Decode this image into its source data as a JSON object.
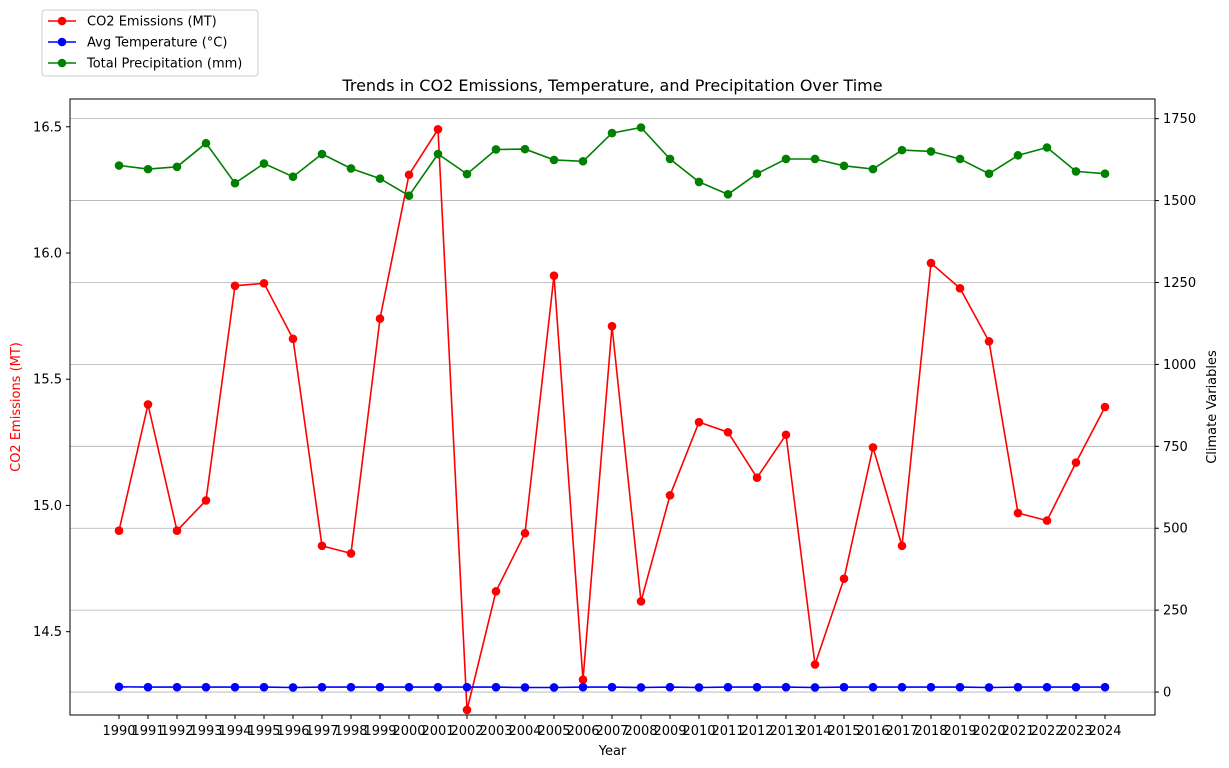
{
  "chart_data": {
    "type": "line",
    "title": "Trends in CO2 Emissions, Temperature, and Precipitation Over Time",
    "xlabel": "Year",
    "ylabel_left": "CO2 Emissions (MT)",
    "ylabel_right": "Climate Variables",
    "x": [
      1990,
      1991,
      1992,
      1993,
      1994,
      1995,
      1996,
      1997,
      1998,
      1999,
      2000,
      2001,
      2002,
      2003,
      2004,
      2005,
      2006,
      2007,
      2008,
      2009,
      2010,
      2011,
      2012,
      2013,
      2014,
      2015,
      2016,
      2017,
      2018,
      2019,
      2020,
      2021,
      2022,
      2023,
      2024
    ],
    "ylim_left": [
      14.17,
      16.61
    ],
    "ylim_right": [
      -70,
      1810
    ],
    "yticks_left": [
      14.5,
      15.0,
      15.5,
      16.0,
      16.5
    ],
    "ytick_labels_left": [
      "14.5",
      "15.0",
      "15.5",
      "16.0",
      "16.5"
    ],
    "yticks_right": [
      0,
      250,
      500,
      750,
      1000,
      1250,
      1500,
      1750
    ],
    "ytick_labels_right": [
      "0",
      "250",
      "500",
      "750",
      "1000",
      "1250",
      "1500",
      "1750"
    ],
    "grid": "horizontal-right-axis",
    "legend_placement": "top-left-outside",
    "series": [
      {
        "name": "CO2 Emissions (MT)",
        "axis": "left",
        "color": "#ff0000",
        "values": [
          14.9,
          15.4,
          14.9,
          15.02,
          15.87,
          15.88,
          15.66,
          14.84,
          14.81,
          15.74,
          16.31,
          16.49,
          14.19,
          14.66,
          14.89,
          15.91,
          14.31,
          15.71,
          14.62,
          15.04,
          15.33,
          15.29,
          15.11,
          15.28,
          14.37,
          14.71,
          15.23,
          14.84,
          15.96,
          15.86,
          15.65,
          14.97,
          14.94,
          15.17,
          15.39
        ]
      },
      {
        "name": "Avg Temperature (°C)",
        "axis": "right",
        "color": "#0000ff",
        "values": [
          16,
          15,
          15,
          15,
          15,
          15,
          14,
          15,
          15,
          15,
          15,
          15,
          15,
          15,
          14,
          14,
          15,
          15,
          14,
          15,
          14,
          15,
          15,
          15,
          14,
          15,
          15,
          15,
          15,
          15,
          14,
          15,
          15,
          15,
          15
        ]
      },
      {
        "name": "Total Precipitation (mm)",
        "axis": "right",
        "color": "#008000",
        "values": [
          1607,
          1596,
          1603,
          1675,
          1553,
          1613,
          1573,
          1642,
          1598,
          1567,
          1515,
          1642,
          1581,
          1656,
          1657,
          1624,
          1620,
          1706,
          1723,
          1627,
          1557,
          1519,
          1582,
          1627,
          1627,
          1606,
          1596,
          1654,
          1650,
          1627,
          1582,
          1638,
          1662,
          1589,
          1582
        ]
      }
    ]
  }
}
